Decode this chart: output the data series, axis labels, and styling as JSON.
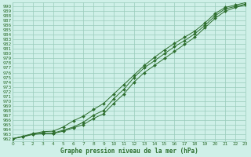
{
  "bg_color": "#cff0e8",
  "grid_color": "#99ccbb",
  "line_color": "#2d6e2d",
  "title": "Graphe pression niveau de la mer (hPa)",
  "xlim": [
    0,
    23
  ],
  "ylim": [
    961.5,
    990.8
  ],
  "xticks": [
    0,
    1,
    2,
    3,
    4,
    5,
    6,
    7,
    8,
    9,
    10,
    11,
    12,
    13,
    14,
    15,
    16,
    17,
    18,
    19,
    20,
    21,
    22,
    23
  ],
  "yticks": [
    962,
    963,
    964,
    965,
    966,
    967,
    968,
    969,
    970,
    971,
    972,
    973,
    974,
    975,
    976,
    977,
    978,
    979,
    980,
    981,
    982,
    983,
    984,
    985,
    986,
    987,
    988,
    989,
    990
  ],
  "series1_x": [
    0,
    1,
    2,
    3,
    4,
    5,
    6,
    7,
    8,
    9,
    10,
    11,
    12,
    13,
    14,
    15,
    16,
    17,
    18,
    19,
    20,
    21,
    22,
    23
  ],
  "series1_y": [
    962.0,
    962.5,
    963.0,
    963.2,
    963.2,
    963.8,
    964.5,
    965.5,
    967.0,
    968.0,
    970.5,
    972.5,
    975.0,
    977.0,
    978.5,
    980.0,
    981.5,
    982.8,
    984.2,
    986.0,
    988.0,
    989.5,
    990.0,
    990.5
  ],
  "series2_x": [
    0,
    1,
    2,
    3,
    4,
    5,
    6,
    7,
    8,
    9,
    10,
    11,
    12,
    13,
    14,
    15,
    16,
    17,
    18,
    19,
    20,
    21,
    22,
    23
  ],
  "series2_y": [
    962.0,
    962.5,
    963.1,
    963.5,
    963.6,
    964.5,
    965.8,
    966.8,
    968.2,
    969.5,
    971.5,
    973.5,
    975.5,
    977.5,
    979.2,
    980.8,
    982.2,
    983.5,
    984.8,
    986.5,
    988.5,
    989.8,
    990.3,
    990.8
  ],
  "series3_x": [
    0,
    1,
    2,
    3,
    4,
    5,
    6,
    7,
    8,
    9,
    10,
    11,
    12,
    13,
    14,
    15,
    16,
    17,
    18,
    19,
    20,
    21,
    22,
    23
  ],
  "series3_y": [
    962.0,
    962.4,
    962.9,
    963.1,
    963.1,
    963.6,
    964.3,
    965.0,
    966.3,
    967.3,
    969.5,
    971.5,
    974.0,
    976.0,
    977.5,
    979.0,
    980.5,
    982.0,
    983.5,
    985.5,
    987.5,
    989.0,
    989.8,
    990.3
  ]
}
